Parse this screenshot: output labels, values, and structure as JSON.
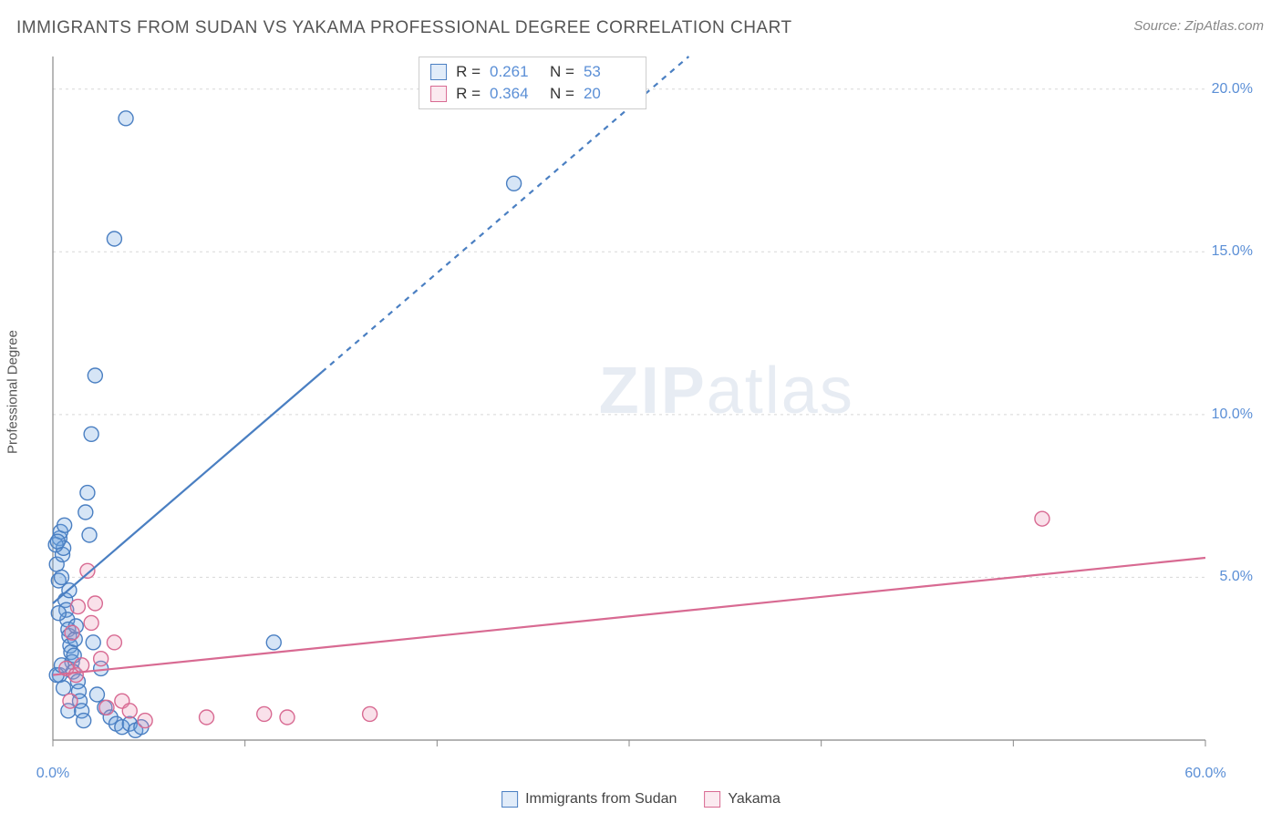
{
  "header": {
    "title": "IMMIGRANTS FROM SUDAN VS YAKAMA PROFESSIONAL DEGREE CORRELATION CHART",
    "source_prefix": "Source: ",
    "source_name": "ZipAtlas.com"
  },
  "watermark": {
    "zip": "ZIP",
    "atlas": "atlas"
  },
  "chart": {
    "type": "scatter",
    "y_axis_label": "Professional Degree",
    "background_color": "#ffffff",
    "grid_color": "#d8d8d8",
    "axis_color": "#888888",
    "tick_color": "#888888",
    "xlim": [
      0,
      60
    ],
    "ylim": [
      0,
      21
    ],
    "x_ticks": [
      0,
      10,
      20,
      30,
      40,
      50,
      60
    ],
    "x_tick_labels": [
      "0.0%",
      "",
      "",
      "",
      "",
      "",
      "60.0%"
    ],
    "y_ticks": [
      5,
      10,
      15,
      20
    ],
    "y_tick_labels": [
      "5.0%",
      "10.0%",
      "15.0%",
      "20.0%"
    ],
    "tick_label_color": "#5b8fd6",
    "tick_label_fontsize": 16,
    "marker_radius": 8,
    "marker_stroke_width": 1.4,
    "marker_fill_opacity": 0.28,
    "series": [
      {
        "name": "Immigrants from Sudan",
        "color": "#6aa0e0",
        "stroke": "#4a7fc2",
        "trend": {
          "x1": 0,
          "y1": 4.2,
          "x2": 40,
          "y2": 24.5,
          "solid_until_x": 14
        },
        "stats": {
          "R": "0.261",
          "N": "53"
        },
        "points": [
          [
            0.2,
            5.4
          ],
          [
            0.3,
            4.9
          ],
          [
            0.35,
            6.2
          ],
          [
            0.4,
            6.4
          ],
          [
            0.45,
            5.0
          ],
          [
            0.5,
            5.7
          ],
          [
            0.55,
            5.9
          ],
          [
            0.6,
            6.6
          ],
          [
            0.65,
            4.3
          ],
          [
            0.7,
            4.0
          ],
          [
            0.75,
            3.7
          ],
          [
            0.8,
            3.4
          ],
          [
            0.85,
            3.2
          ],
          [
            0.9,
            2.9
          ],
          [
            0.95,
            2.7
          ],
          [
            1.0,
            2.4
          ],
          [
            1.05,
            2.1
          ],
          [
            1.1,
            2.6
          ],
          [
            1.15,
            3.1
          ],
          [
            1.2,
            3.5
          ],
          [
            1.3,
            1.8
          ],
          [
            1.35,
            1.5
          ],
          [
            1.4,
            1.2
          ],
          [
            1.5,
            0.9
          ],
          [
            1.6,
            0.6
          ],
          [
            1.7,
            7.0
          ],
          [
            1.8,
            7.6
          ],
          [
            1.9,
            6.3
          ],
          [
            2.1,
            3.0
          ],
          [
            2.3,
            1.4
          ],
          [
            2.5,
            2.2
          ],
          [
            2.7,
            1.0
          ],
          [
            3.0,
            0.7
          ],
          [
            3.3,
            0.5
          ],
          [
            3.6,
            0.4
          ],
          [
            4.0,
            0.5
          ],
          [
            4.3,
            0.3
          ],
          [
            4.6,
            0.4
          ],
          [
            2.0,
            9.4
          ],
          [
            2.2,
            11.2
          ],
          [
            3.2,
            15.4
          ],
          [
            3.8,
            19.1
          ],
          [
            11.5,
            3.0
          ],
          [
            24.0,
            17.1
          ],
          [
            0.15,
            6.0
          ],
          [
            0.25,
            6.1
          ],
          [
            0.3,
            3.9
          ],
          [
            0.35,
            2.0
          ],
          [
            0.55,
            1.6
          ],
          [
            0.8,
            0.9
          ],
          [
            0.85,
            4.6
          ],
          [
            0.2,
            2.0
          ],
          [
            0.45,
            2.3
          ]
        ]
      },
      {
        "name": "Yakama",
        "color": "#eb94b2",
        "stroke": "#d86a92",
        "trend": {
          "x1": 0,
          "y1": 2.0,
          "x2": 60,
          "y2": 5.6,
          "solid_until_x": 60
        },
        "stats": {
          "R": "0.364",
          "N": "20"
        },
        "points": [
          [
            0.7,
            2.2
          ],
          [
            1.2,
            2.0
          ],
          [
            1.5,
            2.3
          ],
          [
            1.8,
            5.2
          ],
          [
            2.0,
            3.6
          ],
          [
            2.2,
            4.2
          ],
          [
            2.5,
            2.5
          ],
          [
            2.8,
            1.0
          ],
          [
            3.2,
            3.0
          ],
          [
            3.6,
            1.2
          ],
          [
            4.0,
            0.9
          ],
          [
            4.8,
            0.6
          ],
          [
            8.0,
            0.7
          ],
          [
            11.0,
            0.8
          ],
          [
            12.2,
            0.7
          ],
          [
            16.5,
            0.8
          ],
          [
            0.9,
            1.2
          ],
          [
            1.0,
            3.3
          ],
          [
            1.3,
            4.1
          ],
          [
            51.5,
            6.8
          ]
        ]
      }
    ],
    "stats_box": {
      "rows": [
        {
          "swatch": "#6aa0e0",
          "stroke": "#4a7fc2",
          "r_label": "R =",
          "r_val": "0.261",
          "n_label": "N =",
          "n_val": "53"
        },
        {
          "swatch": "#eb94b2",
          "stroke": "#d86a92",
          "r_label": "R =",
          "r_val": "0.364",
          "n_label": "N =",
          "n_val": "20"
        }
      ]
    },
    "x_legend": [
      {
        "swatch": "#6aa0e0",
        "stroke": "#4a7fc2",
        "label": "Immigrants from Sudan"
      },
      {
        "swatch": "#eb94b2",
        "stroke": "#d86a92",
        "label": "Yakama"
      }
    ]
  }
}
